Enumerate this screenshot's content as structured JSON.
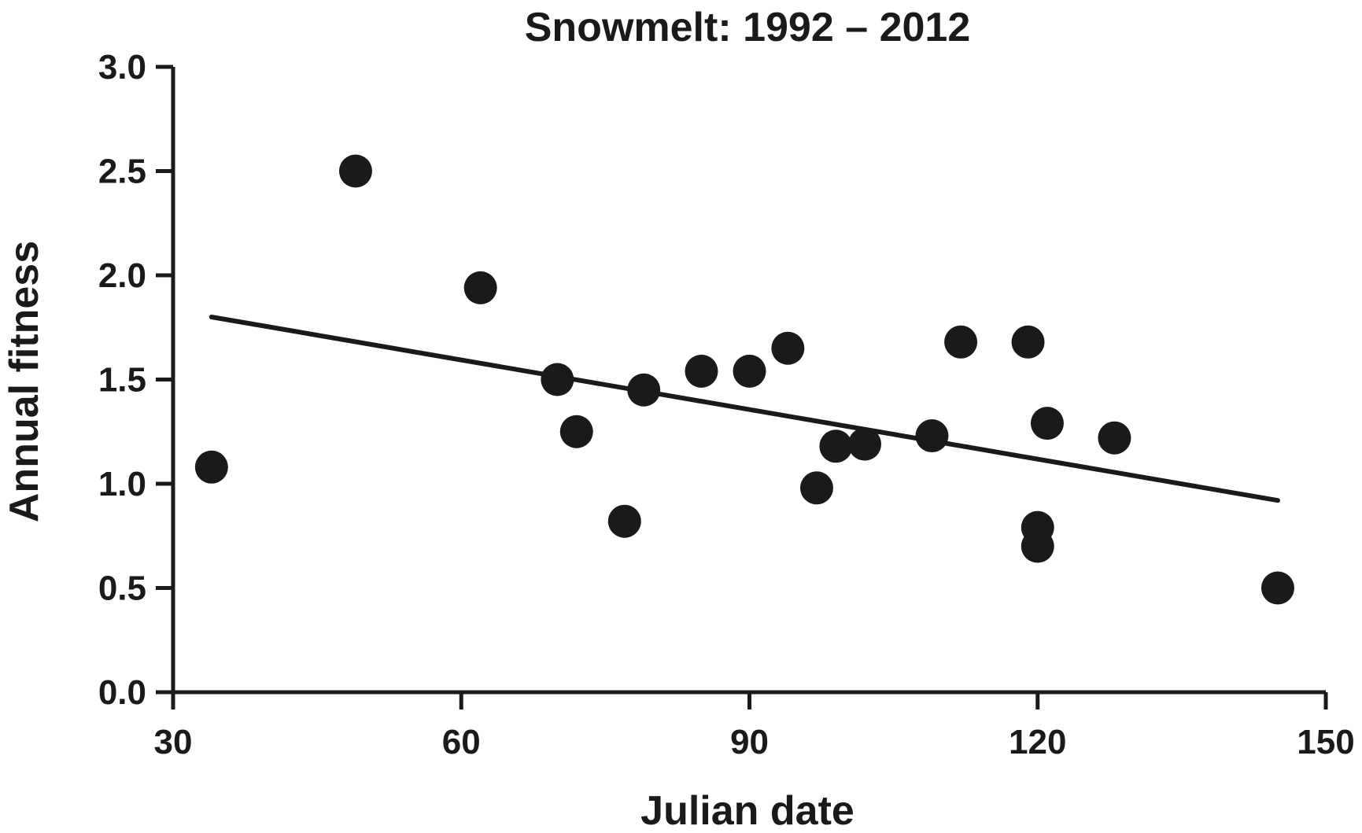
{
  "chart_data": {
    "type": "scatter",
    "title": "Snowmelt:  1992 – 2012",
    "xlabel": "Julian date",
    "ylabel": "Annual fitness",
    "xlim": [
      30,
      150
    ],
    "ylim": [
      0,
      3
    ],
    "xticks": [
      30,
      60,
      90,
      120,
      150
    ],
    "yticks": [
      0,
      0.5,
      1,
      1.5,
      2,
      2.5,
      3
    ],
    "xtick_labels": [
      "30",
      "60",
      "90",
      "120",
      "150"
    ],
    "ytick_labels": [
      "0.0",
      "0.5",
      "1.0",
      "1.5",
      "2.0",
      "2.5",
      "3.0"
    ],
    "grid": false,
    "points": [
      {
        "x": 34,
        "y": 1.08
      },
      {
        "x": 49,
        "y": 2.5
      },
      {
        "x": 62,
        "y": 1.94
      },
      {
        "x": 70,
        "y": 1.5
      },
      {
        "x": 72,
        "y": 1.25
      },
      {
        "x": 77,
        "y": 0.82
      },
      {
        "x": 79,
        "y": 1.45
      },
      {
        "x": 85,
        "y": 1.54
      },
      {
        "x": 90,
        "y": 1.54
      },
      {
        "x": 94,
        "y": 1.65
      },
      {
        "x": 97,
        "y": 0.98
      },
      {
        "x": 99,
        "y": 1.18
      },
      {
        "x": 102,
        "y": 1.19
      },
      {
        "x": 109,
        "y": 1.23
      },
      {
        "x": 112,
        "y": 1.68
      },
      {
        "x": 119,
        "y": 1.68
      },
      {
        "x": 120,
        "y": 0.79
      },
      {
        "x": 120,
        "y": 0.7
      },
      {
        "x": 121,
        "y": 1.29
      },
      {
        "x": 128,
        "y": 1.22
      },
      {
        "x": 145,
        "y": 0.5
      }
    ],
    "trendline": {
      "x": [
        34,
        145
      ],
      "y": [
        1.8,
        0.92
      ]
    },
    "colors": {
      "points": "#1a1a1a",
      "line": "#1a1a1a",
      "axis": "#1a1a1a"
    }
  }
}
